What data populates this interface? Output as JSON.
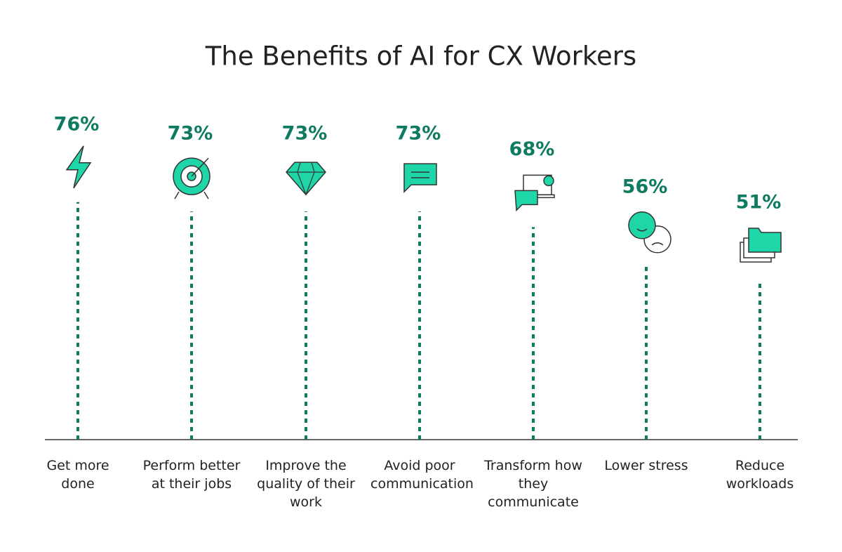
{
  "chart_data": {
    "type": "lollipop",
    "title": "The Benefits of AI for CX Workers",
    "categories": [
      "Get more done",
      "Perform better at their jobs",
      "Improve the quality of their work",
      "Avoid poor communication",
      "Transform how they communicate",
      "Lower stress",
      "Reduce workloads"
    ],
    "values": [
      76,
      73,
      73,
      73,
      68,
      56,
      51
    ],
    "value_labels": [
      "76%",
      "73%",
      "73%",
      "73%",
      "68%",
      "56%",
      "51%"
    ],
    "color": "#0f7a62",
    "icon_color": "#1fd6a8"
  }
}
